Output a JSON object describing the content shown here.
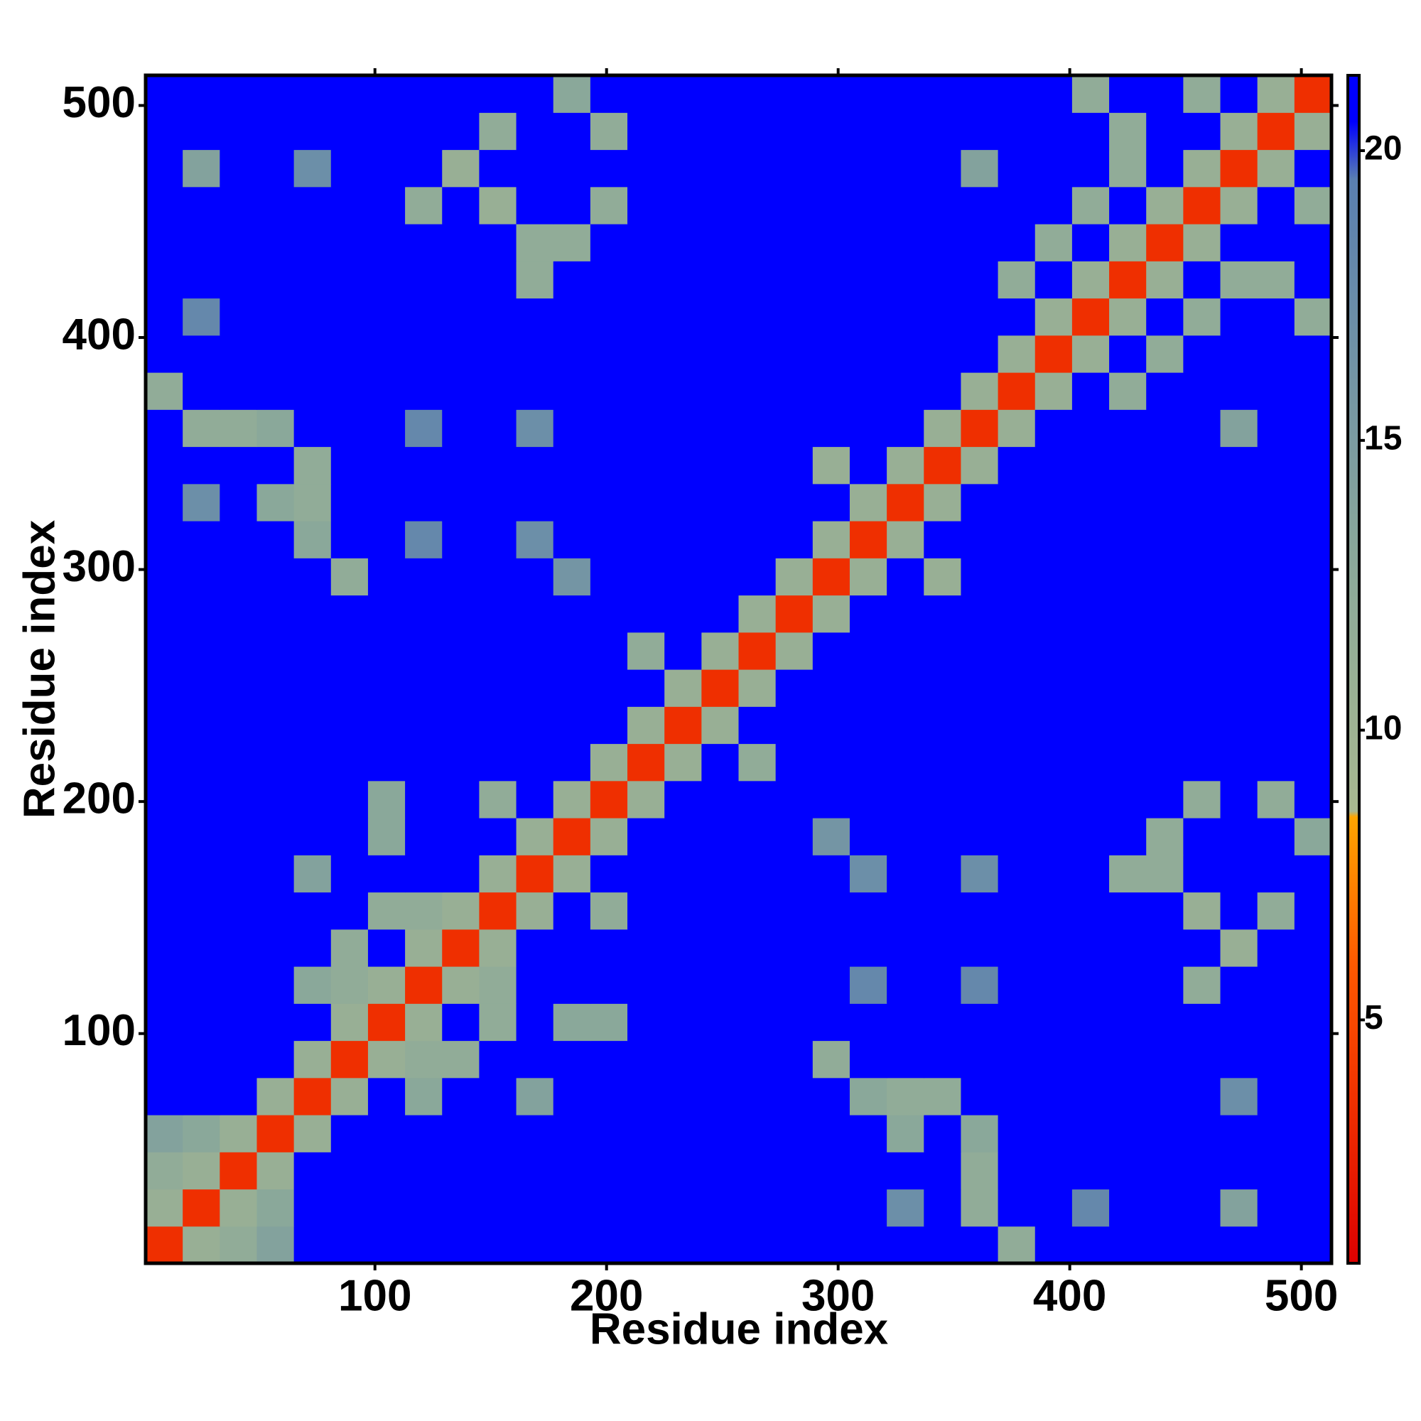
{
  "chart_data": {
    "type": "heatmap",
    "xlabel": "Residue index",
    "ylabel": "Residue index",
    "x": [
      9,
      25,
      41,
      57,
      73,
      89,
      105,
      121,
      137,
      153,
      169,
      185,
      201,
      217,
      233,
      249,
      265,
      281,
      297,
      313,
      329,
      345,
      361,
      377,
      393,
      409,
      425,
      441,
      457,
      473,
      489,
      505
    ],
    "y": [
      9,
      25,
      41,
      57,
      73,
      89,
      105,
      121,
      137,
      153,
      169,
      185,
      201,
      217,
      233,
      249,
      265,
      281,
      297,
      313,
      329,
      345,
      361,
      377,
      393,
      409,
      425,
      441,
      457,
      473,
      489,
      505
    ],
    "xlim": [
      1,
      513
    ],
    "ylim": [
      1,
      513
    ],
    "xticks": [
      100,
      200,
      300,
      400,
      500
    ],
    "yticks": [
      100,
      200,
      300,
      400,
      500
    ],
    "clim": [
      0.8,
      21.3
    ],
    "cticks": [
      5,
      10,
      15,
      20
    ],
    "colorscale": [
      [
        0.8,
        "#dd0000"
      ],
      [
        6,
        "#ff5a00"
      ],
      [
        8.5,
        "#ffa500"
      ],
      [
        8.6,
        "#a8b890"
      ],
      [
        13,
        "#8aa89a"
      ],
      [
        19.5,
        "#5a7fb0"
      ],
      [
        20.5,
        "#0000ff"
      ],
      [
        21.3,
        "#0000ff"
      ]
    ],
    "z": [
      [
        3.5,
        11,
        12,
        14,
        21,
        21,
        21,
        21,
        21,
        21,
        21,
        21,
        21,
        21,
        21,
        21,
        21,
        21,
        21,
        21,
        21,
        21,
        21,
        12,
        21,
        21,
        21,
        21,
        21,
        21,
        21,
        21
      ],
      [
        11,
        3.5,
        11,
        13,
        21,
        21,
        21,
        21,
        21,
        21,
        21,
        21,
        21,
        21,
        21,
        21,
        21,
        21,
        21,
        21,
        17,
        21,
        12,
        21,
        21,
        18,
        21,
        21,
        21,
        14,
        21,
        21
      ],
      [
        12,
        11,
        3.5,
        11,
        21,
        21,
        21,
        21,
        21,
        21,
        21,
        21,
        21,
        21,
        21,
        21,
        21,
        21,
        21,
        21,
        21,
        21,
        12,
        21,
        21,
        21,
        21,
        21,
        21,
        21,
        21,
        21
      ],
      [
        14,
        13,
        11,
        3.5,
        11,
        21,
        21,
        21,
        21,
        21,
        21,
        21,
        21,
        21,
        21,
        21,
        21,
        21,
        21,
        21,
        13,
        21,
        13,
        21,
        21,
        21,
        21,
        21,
        21,
        21,
        21,
        21
      ],
      [
        21,
        21,
        21,
        11,
        3.5,
        11,
        21,
        13,
        21,
        21,
        14,
        21,
        21,
        21,
        21,
        21,
        21,
        21,
        21,
        13,
        12,
        12,
        21,
        21,
        21,
        21,
        21,
        21,
        21,
        17,
        21,
        21
      ],
      [
        21,
        21,
        21,
        21,
        11,
        3.5,
        11,
        12,
        12,
        21,
        21,
        21,
        21,
        21,
        21,
        21,
        21,
        21,
        12,
        21,
        21,
        21,
        21,
        21,
        21,
        21,
        21,
        21,
        21,
        21,
        21,
        21
      ],
      [
        21,
        21,
        21,
        21,
        21,
        11,
        3.5,
        11,
        21,
        12,
        21,
        13,
        13,
        21,
        21,
        21,
        21,
        21,
        21,
        21,
        21,
        21,
        21,
        21,
        21,
        21,
        21,
        21,
        21,
        21,
        21,
        21
      ],
      [
        21,
        21,
        21,
        21,
        13,
        12,
        11,
        3.5,
        11,
        12,
        21,
        21,
        21,
        21,
        21,
        21,
        21,
        21,
        21,
        18,
        21,
        21,
        18,
        21,
        21,
        21,
        21,
        21,
        12,
        21,
        21,
        21
      ],
      [
        21,
        21,
        21,
        21,
        21,
        12,
        21,
        11,
        3.5,
        11,
        21,
        21,
        21,
        21,
        21,
        21,
        21,
        21,
        21,
        21,
        21,
        21,
        21,
        21,
        21,
        21,
        21,
        21,
        21,
        11,
        21,
        21
      ],
      [
        21,
        21,
        21,
        21,
        21,
        21,
        12,
        12,
        11,
        3.5,
        11,
        21,
        12,
        21,
        21,
        21,
        21,
        21,
        21,
        21,
        21,
        21,
        21,
        21,
        21,
        21,
        21,
        21,
        11,
        21,
        12,
        21
      ],
      [
        21,
        21,
        21,
        21,
        14,
        21,
        21,
        21,
        21,
        11,
        3.5,
        11,
        21,
        21,
        21,
        21,
        21,
        21,
        21,
        17,
        21,
        21,
        17,
        21,
        21,
        21,
        12,
        12,
        21,
        21,
        21,
        21
      ],
      [
        21,
        21,
        21,
        21,
        21,
        21,
        13,
        21,
        21,
        21,
        11,
        3.5,
        11,
        21,
        21,
        21,
        21,
        21,
        16,
        21,
        21,
        21,
        21,
        21,
        21,
        21,
        21,
        12,
        21,
        21,
        21,
        13
      ],
      [
        21,
        21,
        21,
        21,
        21,
        21,
        13,
        21,
        21,
        12,
        21,
        11,
        3.5,
        11,
        21,
        21,
        21,
        21,
        21,
        21,
        21,
        21,
        21,
        21,
        21,
        21,
        21,
        21,
        12,
        21,
        12,
        21
      ],
      [
        21,
        21,
        21,
        21,
        21,
        21,
        21,
        21,
        21,
        21,
        21,
        21,
        11,
        3.5,
        11,
        21,
        12,
        21,
        21,
        21,
        21,
        21,
        21,
        21,
        21,
        21,
        21,
        21,
        21,
        21,
        21,
        21
      ],
      [
        21,
        21,
        21,
        21,
        21,
        21,
        21,
        21,
        21,
        21,
        21,
        21,
        21,
        11,
        3.5,
        11,
        21,
        21,
        21,
        21,
        21,
        21,
        21,
        21,
        21,
        21,
        21,
        21,
        21,
        21,
        21,
        21
      ],
      [
        21,
        21,
        21,
        21,
        21,
        21,
        21,
        21,
        21,
        21,
        21,
        21,
        21,
        21,
        11,
        3.5,
        11,
        21,
        21,
        21,
        21,
        21,
        21,
        21,
        21,
        21,
        21,
        21,
        21,
        21,
        21,
        21
      ],
      [
        21,
        21,
        21,
        21,
        21,
        21,
        21,
        21,
        21,
        21,
        21,
        21,
        21,
        12,
        21,
        11,
        3.5,
        11,
        21,
        21,
        21,
        21,
        21,
        21,
        21,
        21,
        21,
        21,
        21,
        21,
        21,
        21
      ],
      [
        21,
        21,
        21,
        21,
        21,
        21,
        21,
        21,
        21,
        21,
        21,
        21,
        21,
        21,
        21,
        21,
        11,
        3.5,
        11,
        21,
        21,
        21,
        21,
        21,
        21,
        21,
        21,
        21,
        21,
        21,
        21,
        21
      ],
      [
        21,
        21,
        21,
        21,
        21,
        12,
        21,
        21,
        21,
        21,
        21,
        16,
        21,
        21,
        21,
        21,
        21,
        11,
        3.5,
        11,
        21,
        11,
        21,
        21,
        21,
        21,
        21,
        21,
        21,
        21,
        21,
        21
      ],
      [
        21,
        21,
        21,
        21,
        13,
        21,
        21,
        18,
        21,
        21,
        17,
        21,
        21,
        21,
        21,
        21,
        21,
        21,
        11,
        3.5,
        11,
        21,
        21,
        21,
        21,
        21,
        21,
        21,
        21,
        21,
        21,
        21
      ],
      [
        21,
        17,
        21,
        13,
        12,
        21,
        21,
        21,
        21,
        21,
        21,
        21,
        21,
        21,
        21,
        21,
        21,
        21,
        21,
        11,
        3.5,
        11,
        21,
        21,
        21,
        21,
        21,
        21,
        21,
        21,
        21,
        21
      ],
      [
        21,
        21,
        21,
        21,
        12,
        21,
        21,
        21,
        21,
        21,
        21,
        21,
        21,
        21,
        21,
        21,
        21,
        21,
        11,
        21,
        11,
        3.5,
        11,
        21,
        21,
        21,
        21,
        21,
        21,
        21,
        21,
        21
      ],
      [
        21,
        12,
        12,
        13,
        21,
        21,
        21,
        18,
        21,
        21,
        17,
        21,
        21,
        21,
        21,
        21,
        21,
        21,
        21,
        21,
        21,
        11,
        3.5,
        11,
        21,
        21,
        21,
        21,
        21,
        14,
        21,
        21
      ],
      [
        12,
        21,
        21,
        21,
        21,
        21,
        21,
        21,
        21,
        21,
        21,
        21,
        21,
        21,
        21,
        21,
        21,
        21,
        21,
        21,
        21,
        21,
        11,
        3.5,
        11,
        21,
        12,
        21,
        21,
        21,
        21,
        21
      ],
      [
        21,
        21,
        21,
        21,
        21,
        21,
        21,
        21,
        21,
        21,
        21,
        21,
        21,
        21,
        21,
        21,
        21,
        21,
        21,
        21,
        21,
        21,
        21,
        11,
        3.5,
        11,
        21,
        12,
        21,
        21,
        21,
        21
      ],
      [
        21,
        18,
        21,
        21,
        21,
        21,
        21,
        21,
        21,
        21,
        21,
        21,
        21,
        21,
        21,
        21,
        21,
        21,
        21,
        21,
        21,
        21,
        21,
        21,
        11,
        3.5,
        11,
        21,
        12,
        21,
        21,
        12
      ],
      [
        21,
        21,
        21,
        21,
        21,
        21,
        21,
        21,
        21,
        21,
        12,
        21,
        21,
        21,
        21,
        21,
        21,
        21,
        21,
        21,
        21,
        21,
        21,
        12,
        21,
        11,
        3.5,
        11,
        21,
        12,
        12,
        21
      ],
      [
        21,
        21,
        21,
        21,
        21,
        21,
        21,
        21,
        21,
        21,
        12,
        12,
        21,
        21,
        21,
        21,
        21,
        21,
        21,
        21,
        21,
        21,
        21,
        21,
        12,
        21,
        11,
        3.5,
        11,
        21,
        21,
        21
      ],
      [
        21,
        21,
        21,
        21,
        21,
        21,
        21,
        12,
        21,
        11,
        21,
        21,
        12,
        21,
        21,
        21,
        21,
        21,
        21,
        21,
        21,
        21,
        21,
        21,
        21,
        12,
        21,
        11,
        3.5,
        11,
        21,
        12
      ],
      [
        21,
        14,
        21,
        21,
        17,
        21,
        21,
        21,
        11,
        21,
        21,
        21,
        21,
        21,
        21,
        21,
        21,
        21,
        21,
        21,
        21,
        21,
        14,
        21,
        21,
        21,
        12,
        21,
        11,
        3.5,
        11,
        21
      ],
      [
        21,
        21,
        21,
        21,
        21,
        21,
        21,
        21,
        21,
        12,
        21,
        21,
        12,
        21,
        21,
        21,
        21,
        21,
        21,
        21,
        21,
        21,
        21,
        21,
        21,
        21,
        12,
        21,
        21,
        11,
        3.5,
        11
      ],
      [
        21,
        21,
        21,
        21,
        21,
        21,
        21,
        21,
        21,
        21,
        21,
        13,
        21,
        21,
        21,
        21,
        21,
        21,
        21,
        21,
        21,
        21,
        21,
        21,
        21,
        12,
        21,
        21,
        12,
        21,
        11,
        3.5
      ]
    ]
  }
}
